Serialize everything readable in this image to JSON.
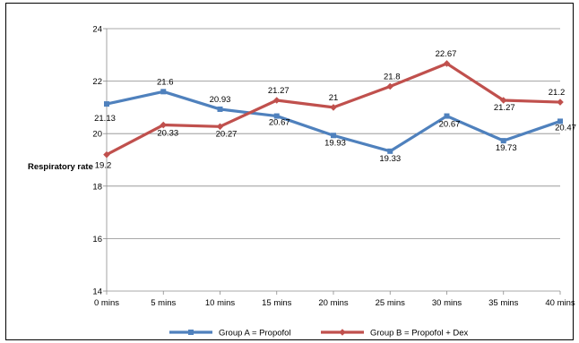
{
  "chart_data": {
    "type": "line",
    "title": "",
    "xlabel": "",
    "ylabel": "Respiratory rate",
    "categories": [
      "0 mins",
      "5 mins",
      "10 mins",
      "15 mins",
      "20 mins",
      "25 mins",
      "30 mins",
      "35 mins",
      "40 mins"
    ],
    "ylim": [
      14,
      24
    ],
    "yticks": [
      14,
      16,
      18,
      20,
      22,
      24
    ],
    "grid": true,
    "legend_position": "bottom",
    "series": [
      {
        "name": "Group A = Propofol",
        "color": "#4F81BD",
        "marker": "square",
        "values": [
          21.13,
          21.6,
          20.93,
          20.67,
          19.93,
          19.33,
          20.67,
          19.73,
          20.47
        ],
        "labels": [
          "21.13",
          "21.6",
          "20.93",
          "20.67",
          "19.93",
          "19.33",
          "20.67",
          "19.73",
          "20.47"
        ]
      },
      {
        "name": "Group B = Propofol + Dex",
        "color": "#C0504D",
        "marker": "diamond",
        "values": [
          19.2,
          20.33,
          20.27,
          21.27,
          21,
          21.8,
          22.67,
          21.27,
          21.2
        ],
        "labels": [
          "19.2",
          "20.33",
          "20.27",
          "21.27",
          "21",
          "21.8",
          "22.67",
          "21.27",
          "21.2"
        ]
      }
    ]
  }
}
